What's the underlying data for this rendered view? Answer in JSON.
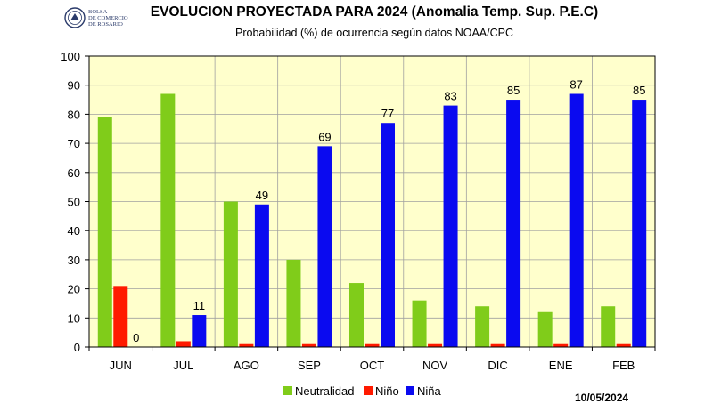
{
  "logo": {
    "org_name": "BOLSA\nDE COMERCIO\nDE ROSARIO"
  },
  "chart_data": {
    "type": "bar",
    "title": "EVOLUCION PROYECTADA PARA 2024 (Anomalia Temp. Sup. P.E.C)",
    "subtitle": "Probabilidad (%) de ocurrencia según datos NOAA/CPC",
    "xlabel": "",
    "ylabel": "",
    "ylim": [
      0,
      100
    ],
    "yticks": [
      0,
      10,
      20,
      30,
      40,
      50,
      60,
      70,
      80,
      90,
      100
    ],
    "grid": true,
    "legend_position": "bottom",
    "categories": [
      "JUN",
      "JUL",
      "AGO",
      "SEP",
      "OCT",
      "NOV",
      "DIC",
      "ENE",
      "FEB"
    ],
    "series": [
      {
        "name": "Neutralidad",
        "color": "#80CC1A",
        "values": [
          79,
          87,
          50,
          30,
          22,
          16,
          14,
          12,
          14
        ]
      },
      {
        "name": "Niño",
        "color": "#FF1A00",
        "values": [
          21,
          2,
          1,
          1,
          1,
          1,
          1,
          1,
          1
        ]
      },
      {
        "name": "Niña",
        "color": "#0A0AF0",
        "values": [
          0,
          11,
          49,
          69,
          77,
          83,
          85,
          87,
          85
        ]
      }
    ],
    "data_labels": {
      "series": "Niña",
      "values": [
        "0",
        "11",
        "49",
        "69",
        "77",
        "83",
        "85",
        "87",
        "85"
      ]
    },
    "plot_background": "#FFFFCC",
    "date": "10/05/2024"
  }
}
